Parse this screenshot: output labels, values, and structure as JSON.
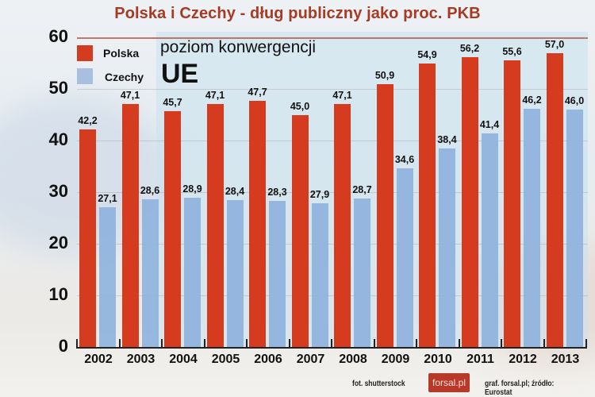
{
  "title": "Polska i Czechy - dług publiczny jako proc. PKB",
  "annotation": {
    "line1": "poziom konwergencji",
    "line2": "UE"
  },
  "legend": [
    {
      "label": "Polska",
      "color": "#d43b1f"
    },
    {
      "label": "Czechy",
      "color": "#8fb3dd"
    }
  ],
  "yaxis": {
    "ticks": [
      "0",
      "10",
      "20",
      "30",
      "40",
      "50",
      "60"
    ]
  },
  "footer": {
    "photo_credit": "fot. shutterstock",
    "logo": "forsal.pl",
    "source": "graf. forsal.pl;  źródło: Eurostat"
  },
  "chart_data": {
    "type": "bar",
    "title": "Polska i Czechy - dług publiczny jako proc. PKB",
    "xlabel": "",
    "ylabel": "",
    "ylim": [
      0,
      60
    ],
    "grid": true,
    "legend_position": "top-left",
    "categories": [
      "2002",
      "2003",
      "2004",
      "2005",
      "2006",
      "2007",
      "2008",
      "2009",
      "2010",
      "2011",
      "2012",
      "2013"
    ],
    "series": [
      {
        "name": "Polska",
        "color": "#d43b1f",
        "values": [
          42.2,
          47.1,
          45.7,
          47.1,
          47.7,
          45.0,
          47.1,
          50.9,
          54.9,
          56.2,
          55.6,
          57.0
        ],
        "labels": [
          "42,2",
          "47,1",
          "45,7",
          "47,1",
          "47,7",
          "45,0",
          "47,1",
          "50,9",
          "54,9",
          "56,2",
          "55,6",
          "57,0"
        ]
      },
      {
        "name": "Czechy",
        "color": "#8fb3dd",
        "values": [
          27.1,
          28.6,
          28.9,
          28.4,
          28.3,
          27.9,
          28.7,
          34.6,
          38.4,
          41.4,
          46.2,
          46.0
        ],
        "labels": [
          "27,1",
          "28,6",
          "28,9",
          "28,4",
          "28,3",
          "27,9",
          "28,7",
          "34,6",
          "38,4",
          "41,4",
          "46,2",
          "46,0"
        ]
      }
    ],
    "annotations": [
      "poziom konwergencji UE"
    ]
  }
}
